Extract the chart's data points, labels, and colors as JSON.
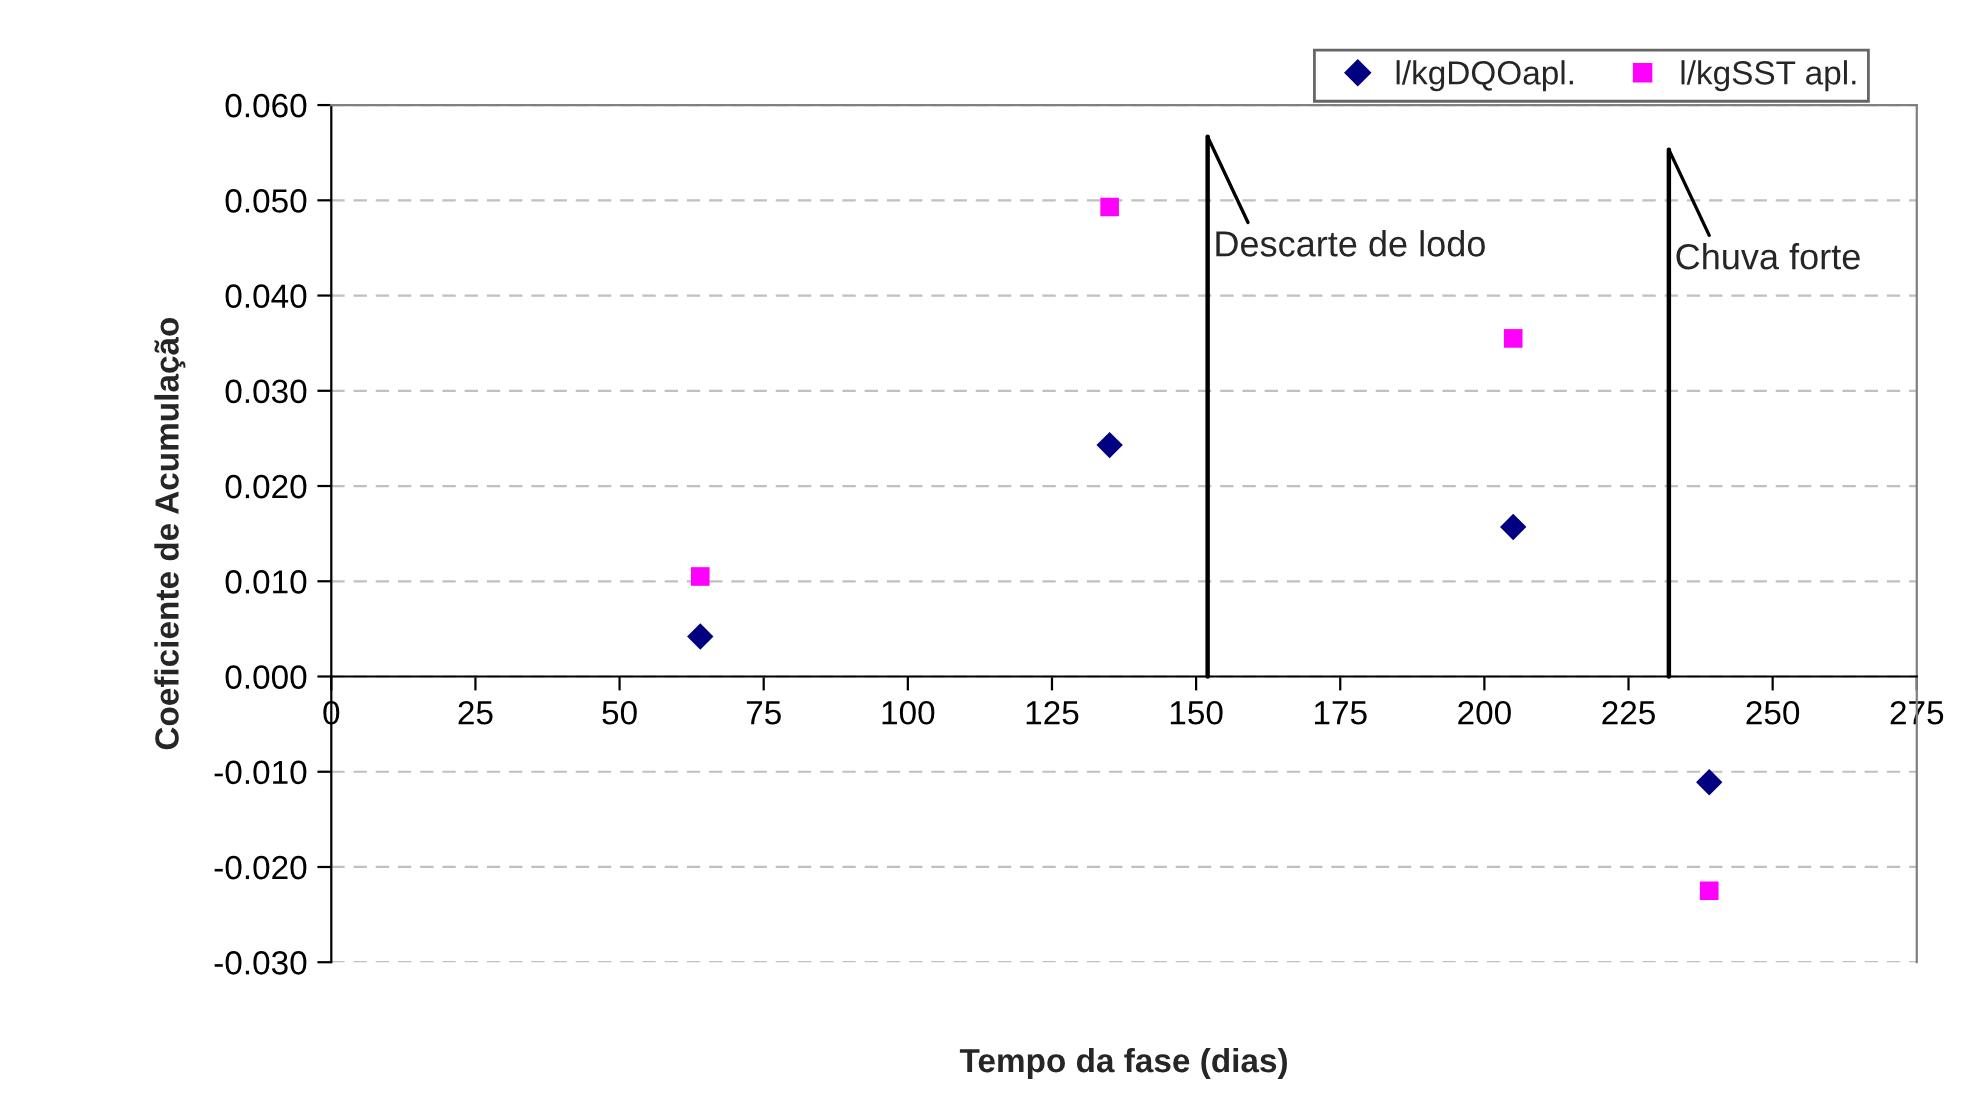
{
  "chart_data": {
    "type": "scatter",
    "xlabel": "Tempo da fase (dias)",
    "ylabel": "Coeficiente de Acumulação",
    "x": [
      64,
      135,
      205,
      239
    ],
    "series": [
      {
        "name": "l/kgDQOapl.",
        "color": "#000080",
        "marker": "diamond",
        "values": [
          0.0042,
          0.0243,
          0.0157,
          -0.0111
        ]
      },
      {
        "name": "l/kgSST apl.",
        "color": "#ff00ff",
        "marker": "square",
        "values": [
          0.0105,
          0.0493,
          0.0355,
          -0.0225
        ]
      }
    ],
    "xlim": [
      0,
      275
    ],
    "xticks": [
      0,
      25,
      50,
      75,
      100,
      125,
      150,
      175,
      200,
      225,
      250,
      275
    ],
    "ylim": [
      -0.03,
      0.06
    ],
    "yticks": [
      {
        "value": -0.03,
        "label": "-0.030"
      },
      {
        "value": -0.02,
        "label": "-0.020"
      },
      {
        "value": -0.01,
        "label": "-0.010"
      },
      {
        "value": 0,
        "label": "0.000"
      },
      {
        "value": 0.01,
        "label": "0.010"
      },
      {
        "value": 0.02,
        "label": "0.020"
      },
      {
        "value": 0.03,
        "label": "0.030"
      },
      {
        "value": 0.04,
        "label": "0.040"
      },
      {
        "value": 0.05,
        "label": "0.050"
      },
      {
        "value": 0.06,
        "label": "0.060"
      }
    ],
    "ref_lines": [
      {
        "axis": "x",
        "value": 152,
        "label": "Descarte de lodo",
        "color": "#000000"
      },
      {
        "axis": "x",
        "value": 232,
        "label": "Chuva forte",
        "color": "#000000"
      }
    ],
    "grid": "y",
    "legend": "top right"
  }
}
